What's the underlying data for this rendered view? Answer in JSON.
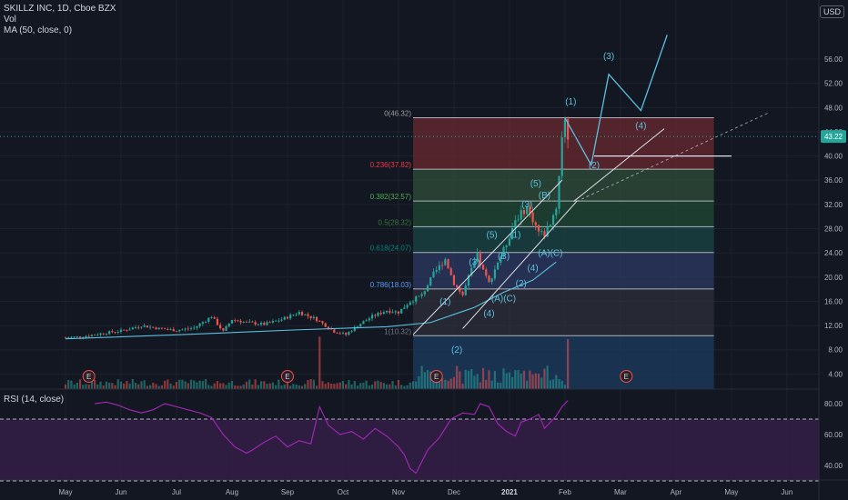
{
  "header": {
    "symbol_line": "SKILLZ INC, 1D, Cboe BZX",
    "volume_label": "Vol",
    "ma_label": "MA (50, close, 0)",
    "currency": "USD"
  },
  "rsi_panel": {
    "label": "RSI (14, close)",
    "ticks": [
      "80.00",
      "60.00",
      "40.00"
    ],
    "levels": [
      70,
      30
    ]
  },
  "current_price": {
    "value": 43.22,
    "label": "43.22"
  },
  "colors": {
    "background": "#131722",
    "up": "#26a69a",
    "down": "#ef5350",
    "ma": "#2196f3",
    "wave": "#5bc0de",
    "rsi": "#9c27b0",
    "rsi_band": "#3b1f4f",
    "fib_level_colors": [
      "#9e9e9e",
      "#f23645",
      "#4caf50",
      "#2e7d32",
      "#00897b",
      "#5b9cf6",
      "#787b86"
    ]
  },
  "chart_data": {
    "type": "candlestick",
    "title": "SKILLZ INC, 1D, Cboe BZX",
    "ylabel": "USD",
    "ylim": [
      0,
      58
    ],
    "y_ticks": [
      "4.00",
      "8.00",
      "12.00",
      "16.00",
      "20.00",
      "24.00",
      "28.00",
      "32.00",
      "36.00",
      "40.00",
      "44.00",
      "48.00",
      "52.00",
      "56.00"
    ],
    "x_labels": [
      "May",
      "Jun",
      "Jul",
      "Aug",
      "Sep",
      "Oct",
      "Nov",
      "Dec",
      "2021",
      "Feb",
      "Mar",
      "Apr",
      "May",
      "Jun"
    ],
    "price_path": [
      [
        0,
        10.0
      ],
      [
        6,
        10.2
      ],
      [
        14,
        10.8
      ],
      [
        20,
        11.2
      ],
      [
        26,
        12.0
      ],
      [
        32,
        11.5
      ],
      [
        38,
        11.2
      ],
      [
        44,
        11.6
      ],
      [
        50,
        13.5
      ],
      [
        54,
        11.0
      ],
      [
        57,
        13.0
      ],
      [
        62,
        12.5
      ],
      [
        68,
        12.2
      ],
      [
        74,
        13.0
      ],
      [
        80,
        14.2
      ],
      [
        86,
        13.0
      ],
      [
        92,
        11.0
      ],
      [
        96,
        10.5
      ],
      [
        100,
        12.0
      ],
      [
        105,
        13.5
      ],
      [
        110,
        14.5
      ],
      [
        114,
        14.2
      ],
      [
        118,
        16.0
      ],
      [
        122,
        17.0
      ],
      [
        126,
        20.5
      ],
      [
        130,
        23.0
      ],
      [
        133,
        19.0
      ],
      [
        136,
        17.0
      ],
      [
        138,
        20.0
      ],
      [
        141,
        23.5
      ],
      [
        143,
        21.0
      ],
      [
        145,
        19.0
      ],
      [
        148,
        22.5
      ],
      [
        151,
        25.5
      ],
      [
        154,
        29.5
      ],
      [
        156,
        30.5
      ],
      [
        158,
        31.5
      ],
      [
        160,
        29.5
      ],
      [
        162,
        27.5
      ],
      [
        164,
        27.0
      ],
      [
        166,
        29.0
      ],
      [
        168,
        31.5
      ],
      [
        169,
        37.0
      ],
      [
        170,
        43.0
      ],
      [
        171,
        46.3
      ],
      [
        172,
        43.2
      ]
    ],
    "volume_spikes": [
      [
        87,
        10.5
      ],
      [
        172,
        10.0
      ]
    ],
    "earnings_markers": [
      {
        "t": 8,
        "label": "E"
      },
      {
        "t": 76,
        "label": "E"
      },
      {
        "t": 127,
        "label": "E"
      },
      {
        "t": 192,
        "label": "E"
      }
    ],
    "fib_retracement": {
      "t_start": 119,
      "t_end": 222,
      "levels": [
        {
          "ratio": "0",
          "price": 46.32,
          "label": "0(46.32)"
        },
        {
          "ratio": "0.236",
          "price": 37.82,
          "label": "0.236(37.82)"
        },
        {
          "ratio": "0.382",
          "price": 32.57,
          "label": "0.382(32.57)"
        },
        {
          "ratio": "0.5",
          "price": 28.32,
          "label": "0.5(28.32)"
        },
        {
          "ratio": "0.618",
          "price": 24.07,
          "label": "0.618(24.07)"
        },
        {
          "ratio": "0.786",
          "price": 18.03,
          "label": "0.786(18.03)"
        },
        {
          "ratio": "1",
          "price": 10.32,
          "label": "1(10.32)"
        }
      ]
    },
    "ma50_path": [
      [
        0,
        9.8
      ],
      [
        40,
        10.5
      ],
      [
        80,
        11.3
      ],
      [
        110,
        11.8
      ],
      [
        125,
        12.5
      ],
      [
        140,
        15.0
      ],
      [
        150,
        17.5
      ],
      [
        160,
        19.5
      ],
      [
        168,
        22.5
      ]
    ],
    "projection_path": [
      [
        171,
        46.3
      ],
      [
        180,
        38.5
      ],
      [
        186,
        53.5
      ],
      [
        197,
        47.5
      ],
      [
        206,
        60
      ]
    ],
    "wave_labels": [
      {
        "label": "(1)",
        "t": 130,
        "p": 15.5
      },
      {
        "label": "(2)",
        "t": 134,
        "p": 7.5
      },
      {
        "label": "(3)",
        "t": 140,
        "p": 22.0
      },
      {
        "label": "(5)",
        "t": 146,
        "p": 26.5
      },
      {
        "label": "(B)",
        "t": 150,
        "p": 23.0
      },
      {
        "label": "(4)",
        "t": 145,
        "p": 13.5
      },
      {
        "label": "(A)(C)",
        "t": 150,
        "p": 16.0
      },
      {
        "label": "(2)",
        "t": 156,
        "p": 18.5
      },
      {
        "label": "(4)",
        "t": 160,
        "p": 21.0
      },
      {
        "label": "(1)",
        "t": 154,
        "p": 26.5
      },
      {
        "label": "(3)",
        "t": 158,
        "p": 31.5
      },
      {
        "label": "(5)",
        "t": 161,
        "p": 35.0
      },
      {
        "label": "(B)",
        "t": 164,
        "p": 33.0
      },
      {
        "label": "(A)(C)",
        "t": 166,
        "p": 23.5
      },
      {
        "label": "(1)",
        "t": 173,
        "p": 48.5
      },
      {
        "label": "(2)",
        "t": 181,
        "p": 38.0
      },
      {
        "label": "(3)",
        "t": 186,
        "p": 56.0
      },
      {
        "label": "(4)",
        "t": 197,
        "p": 44.5
      }
    ],
    "channel_lines": [
      [
        [
          119,
          10.5
        ],
        [
          170,
          36.0
        ]
      ],
      [
        [
          136,
          11.5
        ],
        [
          175,
          32.5
        ]
      ],
      [
        [
          174,
          32.5
        ],
        [
          205,
          44.5
        ]
      ]
    ],
    "horizontal_line": {
      "t_start": 181,
      "t_end": 228,
      "price": 40.0
    },
    "rsi_path": [
      [
        10,
        80
      ],
      [
        14,
        81
      ],
      [
        18,
        79
      ],
      [
        22,
        76
      ],
      [
        26,
        74
      ],
      [
        30,
        76
      ],
      [
        34,
        80
      ],
      [
        38,
        78
      ],
      [
        42,
        76
      ],
      [
        46,
        74
      ],
      [
        50,
        71
      ],
      [
        54,
        60
      ],
      [
        58,
        52
      ],
      [
        62,
        48
      ],
      [
        64,
        50
      ],
      [
        68,
        55
      ],
      [
        72,
        59
      ],
      [
        76,
        52
      ],
      [
        80,
        56
      ],
      [
        84,
        54
      ],
      [
        87,
        78
      ],
      [
        90,
        66
      ],
      [
        94,
        60
      ],
      [
        98,
        62
      ],
      [
        102,
        57
      ],
      [
        106,
        64
      ],
      [
        110,
        59
      ],
      [
        114,
        52
      ],
      [
        116,
        47
      ],
      [
        118,
        38
      ],
      [
        120,
        35
      ],
      [
        124,
        50
      ],
      [
        128,
        58
      ],
      [
        132,
        70
      ],
      [
        136,
        74
      ],
      [
        140,
        73
      ],
      [
        142,
        80
      ],
      [
        145,
        78
      ],
      [
        148,
        67
      ],
      [
        151,
        62
      ],
      [
        154,
        59
      ],
      [
        156,
        68
      ],
      [
        159,
        70
      ],
      [
        162,
        73
      ],
      [
        164,
        64
      ],
      [
        166,
        68
      ],
      [
        168,
        72
      ],
      [
        170,
        78
      ],
      [
        172,
        82
      ]
    ],
    "x_label_t": [
      0,
      19,
      38,
      57,
      76,
      95,
      114,
      133,
      152,
      171,
      190,
      209,
      228,
      247
    ]
  }
}
